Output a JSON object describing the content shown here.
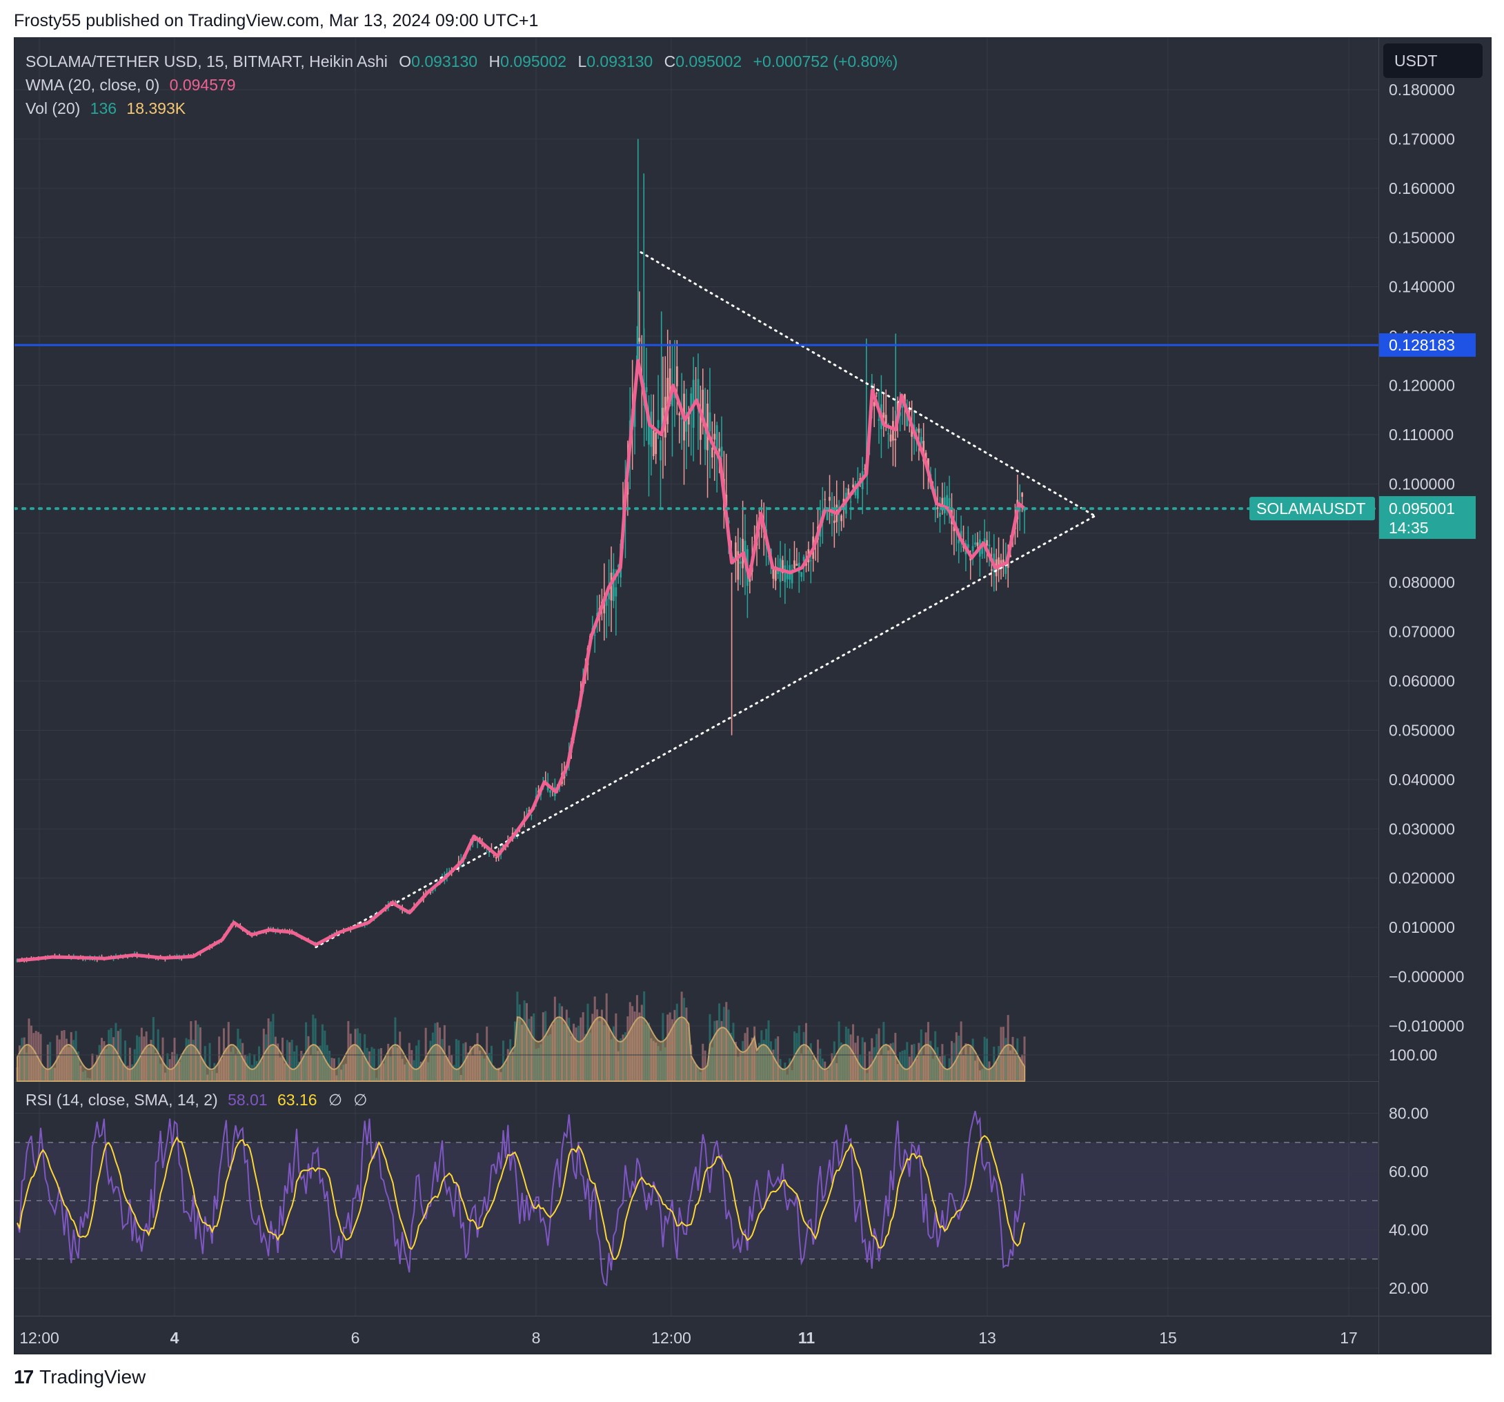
{
  "header": {
    "published": "Frosty55 published on TradingView.com, Mar 13, 2024 09:00 UTC+1"
  },
  "legend": {
    "symbol": "SOLAMA/TETHER USD, 15, BITMART, Heikin Ashi",
    "o_label": "O",
    "o_value": "0.093130",
    "h_label": "H",
    "h_value": "0.095002",
    "l_label": "L",
    "l_value": "0.093130",
    "c_label": "C",
    "c_value": "0.095002",
    "change": "+0.000752 (+0.80%)",
    "wma_label": "WMA (20, close, 0)",
    "wma_value": "0.094579",
    "vol_label": "Vol (20)",
    "vol_value1": "136",
    "vol_value2": "18.393K",
    "rsi_label": "RSI (14, close, SMA, 14, 2)",
    "rsi_value1": "58.01",
    "rsi_value2": "63.16",
    "rsi_na1": "∅",
    "rsi_na2": "∅"
  },
  "currency_button": "USDT",
  "price_axis": {
    "ticks": [
      "0.180000",
      "0.170000",
      "0.160000",
      "0.150000",
      "0.140000",
      "0.130000",
      "0.120000",
      "0.110000",
      "0.100000",
      "0.090000",
      "0.080000",
      "0.070000",
      "0.060000",
      "0.050000",
      "0.040000",
      "0.030000",
      "0.020000",
      "0.010000",
      "−0.000000",
      "−0.010000"
    ],
    "tick_values": [
      0.18,
      0.17,
      0.16,
      0.15,
      0.14,
      0.13,
      0.12,
      0.11,
      0.1,
      0.09,
      0.08,
      0.07,
      0.06,
      0.05,
      0.04,
      0.03,
      0.02,
      0.01,
      0.0,
      -0.01
    ]
  },
  "rsi_axis": {
    "ticks": [
      "100.00",
      "80.00",
      "60.00",
      "40.00",
      "20.00"
    ],
    "tick_values": [
      100,
      80,
      60,
      40,
      20
    ]
  },
  "time_axis": {
    "labels": [
      "12:00",
      "4",
      "6",
      "8",
      "12:00",
      "11",
      "13",
      "15",
      "17"
    ],
    "bold": [
      false,
      true,
      false,
      false,
      false,
      true,
      false,
      false,
      false
    ]
  },
  "markers": {
    "horizontal_line": {
      "value": 0.128183,
      "label": "0.128183",
      "color": "#1e53e5"
    },
    "current_price": {
      "symbol": "SOLAMAUSDT",
      "value": 0.095001,
      "label": "0.095001",
      "countdown": "14:35",
      "color": "#26a69a"
    }
  },
  "colors": {
    "up": "#26a69a",
    "down": "#ef9a9a",
    "wma": "#f06292",
    "rsi": "#7e57c2",
    "rsi_sma": "#fdd835",
    "volume_ma": "#c6a36b"
  },
  "footer": {
    "brand": "TradingView",
    "logo": "tradingview-logo-icon"
  },
  "chart_data": {
    "type": "candlestick",
    "pair": "SOLAMA/TETHER USD",
    "timeframe": "15",
    "exchange": "BITMART",
    "x_range": [
      "Mar 3 12:00",
      "Mar 13"
    ],
    "y_range": [
      -0.015,
      0.185
    ],
    "wma_series": {
      "name": "WMA (20, close, 0)",
      "points": [
        [
          0,
          0.0033
        ],
        [
          3,
          0.0036
        ],
        [
          6,
          0.004
        ],
        [
          10,
          0.0039
        ],
        [
          15,
          0.0037
        ],
        [
          20,
          0.0044
        ],
        [
          25,
          0.0038
        ],
        [
          30,
          0.0041
        ],
        [
          35,
          0.0075
        ],
        [
          37,
          0.011
        ],
        [
          40,
          0.0085
        ],
        [
          43,
          0.0095
        ],
        [
          47,
          0.009
        ],
        [
          51,
          0.0065
        ],
        [
          55,
          0.009
        ],
        [
          60,
          0.011
        ],
        [
          64,
          0.015
        ],
        [
          67,
          0.013
        ],
        [
          70,
          0.017
        ],
        [
          73,
          0.02
        ],
        [
          76,
          0.0235
        ],
        [
          78,
          0.0285
        ],
        [
          80,
          0.0265
        ],
        [
          82,
          0.0245
        ],
        [
          85,
          0.029
        ],
        [
          88,
          0.034
        ],
        [
          90,
          0.0395
        ],
        [
          92,
          0.0375
        ],
        [
          94,
          0.043
        ],
        [
          96,
          0.055
        ],
        [
          98,
          0.069
        ],
        [
          101,
          0.079
        ],
        [
          103,
          0.083
        ],
        [
          104,
          0.1
        ],
        [
          106,
          0.125
        ],
        [
          108,
          0.112
        ],
        [
          110,
          0.11
        ],
        [
          112,
          0.12
        ],
        [
          114,
          0.113
        ],
        [
          116,
          0.117
        ],
        [
          118,
          0.11
        ],
        [
          120,
          0.105
        ],
        [
          122,
          0.084
        ],
        [
          124,
          0.086
        ],
        [
          125,
          0.081
        ],
        [
          127,
          0.094
        ],
        [
          129,
          0.083
        ],
        [
          132,
          0.082
        ],
        [
          134,
          0.083
        ],
        [
          136,
          0.087
        ],
        [
          138,
          0.095
        ],
        [
          140,
          0.094
        ],
        [
          143,
          0.099
        ],
        [
          145,
          0.102
        ],
        [
          146,
          0.119
        ],
        [
          148,
          0.112
        ],
        [
          150,
          0.111
        ],
        [
          151,
          0.118
        ],
        [
          153,
          0.111
        ],
        [
          155,
          0.105
        ],
        [
          157,
          0.096
        ],
        [
          159,
          0.095
        ],
        [
          161,
          0.089
        ],
        [
          163,
          0.085
        ],
        [
          165,
          0.088
        ],
        [
          167,
          0.083
        ],
        [
          169,
          0.084
        ],
        [
          171,
          0.096
        ],
        [
          172,
          0.095
        ]
      ]
    },
    "annotations": [
      "symmetrical triangle (dotted lines)",
      "horizontal resistance at 0.128183"
    ]
  }
}
